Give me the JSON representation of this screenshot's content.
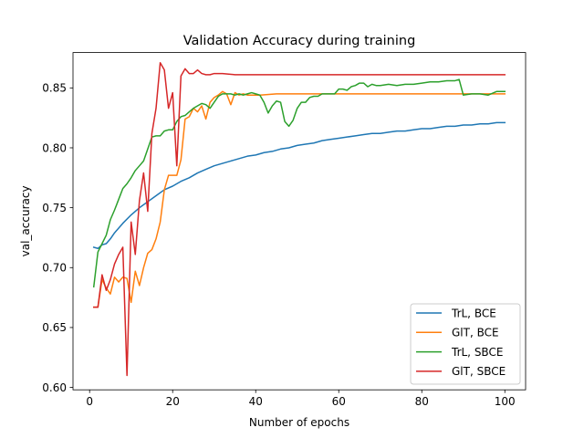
{
  "chart_data": {
    "type": "line",
    "title": "Validation Accuracy during training",
    "xlabel": "Number of epochs",
    "ylabel": "val_accuracy",
    "xlim": [
      -4,
      105
    ],
    "ylim": [
      0.598,
      0.8795
    ],
    "xticks": [
      0,
      20,
      40,
      60,
      80,
      100
    ],
    "yticks": [
      0.6,
      0.65,
      0.7,
      0.75,
      0.8,
      0.85
    ],
    "ytick_labels": [
      "0.60",
      "0.65",
      "0.70",
      "0.75",
      "0.80",
      "0.85"
    ],
    "grid": false,
    "legend_position": "bottom-right",
    "series": [
      {
        "name": "TrL, BCE",
        "color": "#1f77b4",
        "x": [
          1,
          2,
          3,
          4,
          5,
          6,
          8,
          10,
          12,
          14,
          16,
          18,
          20,
          22,
          24,
          26,
          28,
          30,
          32,
          34,
          36,
          38,
          40,
          42,
          44,
          46,
          48,
          50,
          52,
          54,
          56,
          58,
          60,
          62,
          64,
          66,
          68,
          70,
          72,
          74,
          76,
          78,
          80,
          82,
          84,
          86,
          88,
          90,
          92,
          94,
          96,
          98,
          100
        ],
        "values": [
          0.717,
          0.716,
          0.719,
          0.72,
          0.724,
          0.729,
          0.737,
          0.744,
          0.75,
          0.755,
          0.76,
          0.765,
          0.768,
          0.772,
          0.775,
          0.779,
          0.782,
          0.785,
          0.787,
          0.789,
          0.791,
          0.793,
          0.794,
          0.796,
          0.797,
          0.799,
          0.8,
          0.802,
          0.803,
          0.804,
          0.806,
          0.807,
          0.808,
          0.809,
          0.81,
          0.811,
          0.812,
          0.812,
          0.813,
          0.814,
          0.814,
          0.815,
          0.816,
          0.816,
          0.817,
          0.818,
          0.818,
          0.819,
          0.819,
          0.82,
          0.82,
          0.821,
          0.821
        ]
      },
      {
        "name": "GlT, BCE",
        "color": "#ff7f0e",
        "x": [
          1,
          2,
          3,
          4,
          5,
          6,
          7,
          8,
          9,
          10,
          11,
          12,
          13,
          14,
          15,
          16,
          17,
          18,
          19,
          20,
          21,
          22,
          23,
          24,
          25,
          26,
          27,
          28,
          29,
          30,
          31,
          32,
          33,
          34,
          35,
          36,
          37,
          38,
          39,
          40,
          41,
          45,
          55,
          70,
          85,
          100
        ],
        "values": [
          0.667,
          0.667,
          0.69,
          0.683,
          0.678,
          0.692,
          0.688,
          0.692,
          0.691,
          0.671,
          0.697,
          0.685,
          0.7,
          0.712,
          0.715,
          0.724,
          0.738,
          0.765,
          0.777,
          0.777,
          0.777,
          0.79,
          0.824,
          0.826,
          0.833,
          0.83,
          0.835,
          0.824,
          0.838,
          0.842,
          0.844,
          0.847,
          0.845,
          0.836,
          0.846,
          0.844,
          0.845,
          0.844,
          0.844,
          0.844,
          0.844,
          0.845,
          0.845,
          0.845,
          0.845,
          0.845
        ]
      },
      {
        "name": "TrL, SBCE",
        "color": "#2ca02c",
        "x": [
          1,
          2,
          3,
          4,
          5,
          6,
          7,
          8,
          9,
          10,
          11,
          12,
          13,
          14,
          15,
          16,
          17,
          18,
          19,
          20,
          21,
          22,
          23,
          24,
          25,
          26,
          27,
          28,
          29,
          30,
          31,
          32,
          33,
          34,
          35,
          36,
          37,
          38,
          39,
          40,
          41,
          42,
          43,
          44,
          45,
          46,
          47,
          48,
          49,
          50,
          51,
          52,
          53,
          54,
          55,
          56,
          57,
          58,
          59,
          60,
          61,
          62,
          63,
          64,
          65,
          66,
          67,
          68,
          69,
          70,
          72,
          74,
          76,
          78,
          80,
          82,
          84,
          86,
          88,
          89,
          90,
          92,
          94,
          96,
          98,
          100
        ],
        "values": [
          0.684,
          0.713,
          0.72,
          0.727,
          0.74,
          0.748,
          0.757,
          0.766,
          0.77,
          0.775,
          0.781,
          0.785,
          0.789,
          0.799,
          0.809,
          0.81,
          0.81,
          0.814,
          0.815,
          0.815,
          0.822,
          0.826,
          0.827,
          0.83,
          0.833,
          0.835,
          0.837,
          0.836,
          0.833,
          0.838,
          0.843,
          0.845,
          0.845,
          0.845,
          0.844,
          0.845,
          0.844,
          0.845,
          0.846,
          0.845,
          0.844,
          0.838,
          0.829,
          0.835,
          0.839,
          0.838,
          0.822,
          0.818,
          0.823,
          0.833,
          0.838,
          0.838,
          0.842,
          0.843,
          0.843,
          0.845,
          0.845,
          0.845,
          0.845,
          0.849,
          0.849,
          0.848,
          0.851,
          0.852,
          0.854,
          0.854,
          0.851,
          0.853,
          0.852,
          0.852,
          0.853,
          0.852,
          0.853,
          0.853,
          0.854,
          0.855,
          0.855,
          0.856,
          0.856,
          0.857,
          0.844,
          0.845,
          0.845,
          0.844,
          0.847,
          0.847
        ]
      },
      {
        "name": "GlT, SBCE",
        "color": "#d62728",
        "x": [
          1,
          2,
          3,
          4,
          5,
          6,
          7,
          8,
          9,
          10,
          11,
          12,
          13,
          14,
          15,
          16,
          17,
          18,
          19,
          20,
          21,
          22,
          23,
          24,
          25,
          26,
          27,
          28,
          29,
          30,
          31,
          32,
          35,
          40,
          50,
          60,
          70,
          80,
          90,
          100
        ],
        "values": [
          0.667,
          0.667,
          0.694,
          0.681,
          0.69,
          0.703,
          0.711,
          0.717,
          0.61,
          0.738,
          0.711,
          0.756,
          0.779,
          0.747,
          0.812,
          0.833,
          0.871,
          0.865,
          0.833,
          0.846,
          0.785,
          0.86,
          0.866,
          0.862,
          0.862,
          0.865,
          0.862,
          0.861,
          0.861,
          0.862,
          0.862,
          0.862,
          0.861,
          0.861,
          0.861,
          0.861,
          0.861,
          0.861,
          0.861,
          0.861
        ]
      }
    ]
  }
}
